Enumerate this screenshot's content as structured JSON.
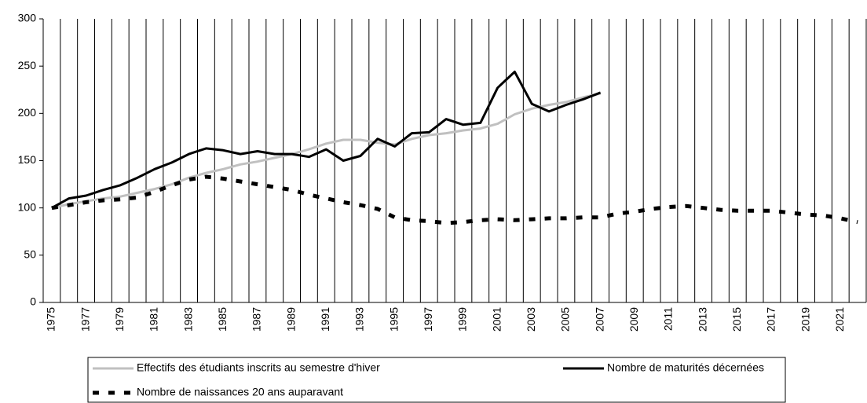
{
  "chart_data": {
    "type": "line",
    "categories": [
      "1975",
      null,
      "1977",
      null,
      "1979",
      null,
      "1981",
      null,
      "1983",
      null,
      "1985",
      null,
      "1987",
      null,
      "1989",
      null,
      "1991",
      null,
      "1993",
      null,
      "1995",
      null,
      "1997",
      null,
      "1999",
      null,
      "2001",
      null,
      "2003",
      null,
      "2005",
      null,
      "2007",
      null,
      "2009",
      null,
      "2011",
      null,
      "2013",
      null,
      "2015",
      null,
      "2017",
      null,
      "2019",
      null,
      "2021",
      null
    ],
    "ylim": [
      0,
      300
    ],
    "yticks": [
      0,
      50,
      100,
      150,
      200,
      250,
      300
    ],
    "series": [
      {
        "name": "Effectifs des étudiants inscrits au semestre d'hiver",
        "color": "#c0c0c0",
        "style": "solid",
        "values": [
          100,
          104,
          107,
          110,
          112,
          116,
          120,
          125,
          132,
          137,
          141,
          146,
          149,
          153,
          157,
          162,
          168,
          172,
          172,
          169,
          167,
          173,
          177,
          179,
          182,
          184,
          189,
          199,
          205,
          209,
          212,
          217,
          221,
          null,
          null,
          null,
          null,
          null,
          null,
          null,
          null,
          null,
          null,
          null,
          null,
          null,
          null,
          null
        ]
      },
      {
        "name": "Nombre de maturités décernées",
        "color": "#000000",
        "style": "solid",
        "values": [
          100,
          110,
          113,
          119,
          124,
          132,
          141,
          148,
          157,
          163,
          161,
          157,
          160,
          157,
          157,
          154,
          162,
          150,
          155,
          173,
          165,
          179,
          180,
          194,
          188,
          190,
          227,
          244,
          210,
          202,
          209,
          215,
          222,
          null,
          null,
          null,
          null,
          null,
          null,
          null,
          null,
          null,
          null,
          null,
          null,
          null,
          null,
          null
        ]
      },
      {
        "name": "Nombre de naissances 20 ans auparavant",
        "color": "#000000",
        "style": "dashed",
        "values": [
          100,
          103,
          106,
          108,
          109,
          111,
          117,
          124,
          130,
          133,
          131,
          128,
          125,
          122,
          119,
          114,
          110,
          106,
          103,
          99,
          90,
          87,
          86,
          84,
          85,
          87,
          88,
          87,
          88,
          89,
          89,
          90,
          90,
          94,
          96,
          99,
          101,
          102,
          100,
          98,
          97,
          97,
          97,
          95,
          93,
          92,
          89,
          85
        ]
      }
    ]
  }
}
